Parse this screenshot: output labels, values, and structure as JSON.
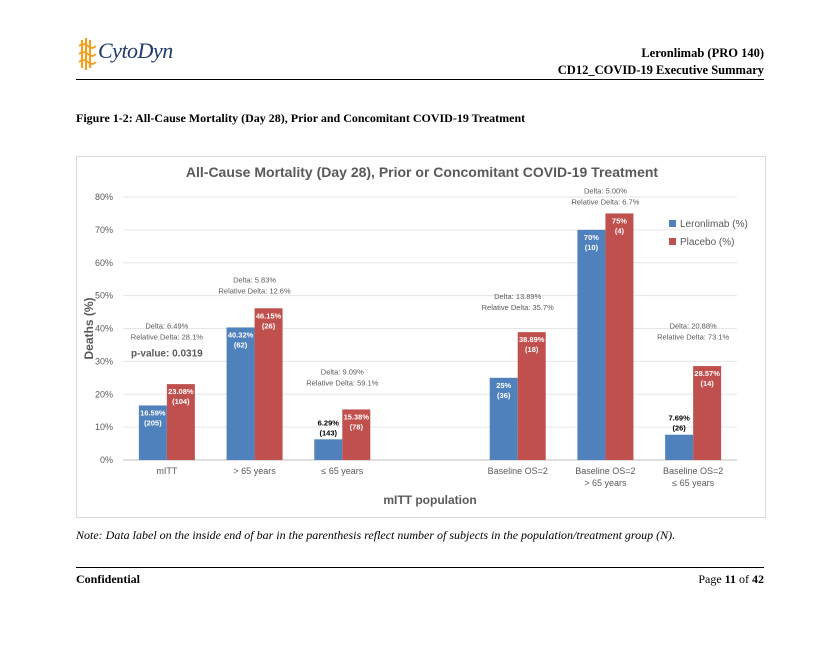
{
  "header": {
    "logo_text": "CytoDyn",
    "product": "Leronlimab (PRO 140)",
    "document": "CD12_COVID-19 Executive Summary"
  },
  "figure_title": "Figure 1-2: All-Cause Mortality (Day 28), Prior and Concomitant COVID-19 Treatment",
  "note": "Note: Data label on the inside end of bar in the parenthesis reflect number of subjects in the population/treatment group (N).",
  "footer": {
    "left": "Confidential",
    "page_prefix": "Page ",
    "page_current": "11",
    "page_mid": " of ",
    "page_total": "42"
  },
  "colors": {
    "leronlimab": "#4f81bd",
    "placebo": "#c0504d",
    "logo_blue": "#1e3a6e",
    "logo_orange": "#f0a020"
  },
  "chart_data": {
    "type": "bar",
    "title": "All-Cause Mortality (Day 28), Prior or Concomitant COVID-19 Treatment",
    "xlabel": "mITT population",
    "ylabel": "Deaths (%)",
    "ylim": [
      0,
      80
    ],
    "yticks": [
      "0%",
      "10%",
      "20%",
      "30%",
      "40%",
      "50%",
      "60%",
      "70%",
      "80%"
    ],
    "grid": true,
    "legend_position": "right",
    "categories": [
      [
        "mITT"
      ],
      [
        "> 65 years"
      ],
      [
        "≤ 65 years"
      ],
      [],
      [
        "Baseline OS=2"
      ],
      [
        "Baseline OS=2",
        "> 65 years"
      ],
      [
        "Baseline OS=2",
        "≤ 65 years"
      ]
    ],
    "series": [
      {
        "name": "Leronlimab (%)",
        "values": [
          16.59,
          40.32,
          6.29,
          null,
          25,
          70,
          7.69
        ],
        "labels": [
          "16.59%",
          "40.32%",
          "6.29%",
          null,
          "25%",
          "70%",
          "7.69%"
        ],
        "n": [
          "(205)",
          "(62)",
          "(143)",
          null,
          "(36)",
          "(10)",
          "(26)"
        ]
      },
      {
        "name": "Placebo (%)",
        "values": [
          23.08,
          46.15,
          15.38,
          null,
          38.89,
          75,
          28.57
        ],
        "labels": [
          "23.08%",
          "46.15%",
          "15.38%",
          null,
          "38.89%",
          "75%",
          "28.57%"
        ],
        "n": [
          "(104)",
          "(26)",
          "(78)",
          null,
          "(18)",
          "(4)",
          "(14)"
        ]
      }
    ],
    "annotations": [
      {
        "group": 0,
        "lines": [
          "Delta: 6.49%",
          "Relative Delta: 28.1%"
        ],
        "value": 40
      },
      {
        "group": 1,
        "lines": [
          "Delta: 5.83%",
          "Relative Delta: 12.6%"
        ],
        "value": 54
      },
      {
        "group": 2,
        "lines": [
          "Delta: 9.09%",
          "Relative Delta: 59.1%"
        ],
        "value": 26
      },
      {
        "group": 4,
        "lines": [
          "Delta: 13.89%",
          "Relative Delta: 35.7%"
        ],
        "value": 49
      },
      {
        "group": 5,
        "lines": [
          "Delta: 5.00%",
          "Relative Delta: 6.7%"
        ],
        "value": 81
      },
      {
        "group": 6,
        "lines": [
          "Delta: 20.88%",
          "Relative Delta: 73.1%"
        ],
        "value": 40
      }
    ],
    "pvalue": "p-value: 0.0319"
  }
}
